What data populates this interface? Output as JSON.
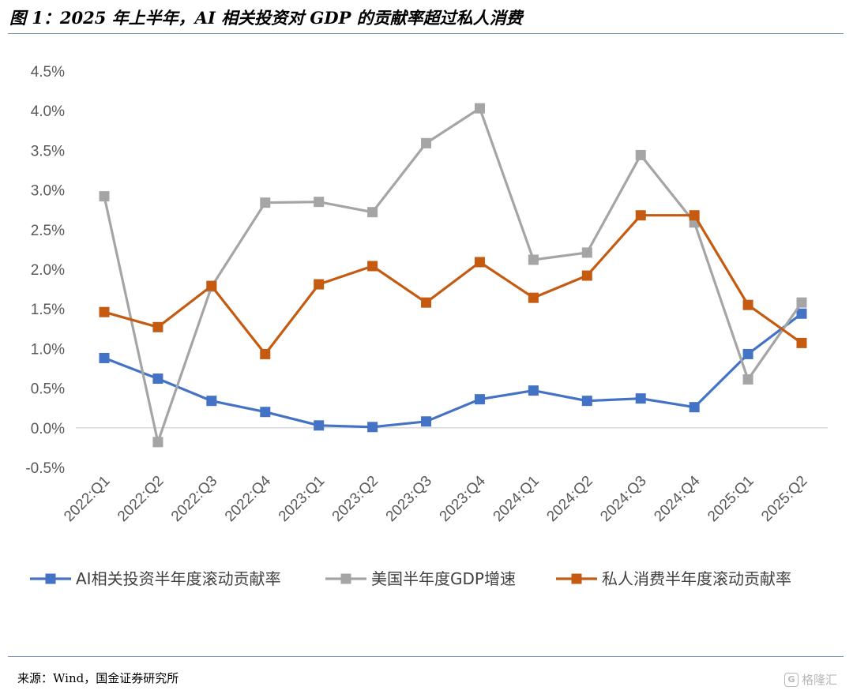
{
  "header": {
    "title": "图 1：2025 年上半年，AI 相关投资对 GDP 的贡献率超过私人消费"
  },
  "footer": {
    "source": "来源：Wind，国金证券研究所",
    "watermark_logo": "G",
    "watermark_text": "格隆汇"
  },
  "chart_data": {
    "type": "line",
    "categories": [
      "2022:Q1",
      "2022:Q2",
      "2022:Q3",
      "2022:Q4",
      "2023:Q1",
      "2023:Q2",
      "2023:Q3",
      "2023:Q4",
      "2024:Q1",
      "2024:Q2",
      "2024:Q3",
      "2024:Q4",
      "2025:Q1",
      "2025:Q2"
    ],
    "ylim": [
      -0.5,
      4.5
    ],
    "yticks": [
      -0.5,
      0.0,
      0.5,
      1.0,
      1.5,
      2.0,
      2.5,
      3.0,
      3.5,
      4.0,
      4.5
    ],
    "ytick_labels": [
      "-0.5%",
      "0.0%",
      "0.5%",
      "1.0%",
      "1.5%",
      "2.0%",
      "2.5%",
      "3.0%",
      "3.5%",
      "4.0%",
      "4.5%"
    ],
    "legend_position": "bottom",
    "series": [
      {
        "name": "AI相关投资半年度滚动贡献率",
        "color": "#4472c4",
        "values": [
          0.88,
          0.62,
          0.34,
          0.2,
          0.03,
          0.01,
          0.08,
          0.36,
          0.47,
          0.34,
          0.37,
          0.26,
          0.93,
          1.44
        ]
      },
      {
        "name": "美国半年度GDP增速",
        "color": "#a5a5a5",
        "values": [
          2.92,
          -0.18,
          1.78,
          2.84,
          2.85,
          2.72,
          3.59,
          4.03,
          2.12,
          2.21,
          3.44,
          2.59,
          0.61,
          1.58
        ]
      },
      {
        "name": "私人消费半年度滚动贡献率",
        "color": "#c55a11",
        "values": [
          1.46,
          1.27,
          1.79,
          0.93,
          1.81,
          2.04,
          1.58,
          2.09,
          1.64,
          1.92,
          2.68,
          2.68,
          1.55,
          1.07
        ]
      }
    ]
  }
}
